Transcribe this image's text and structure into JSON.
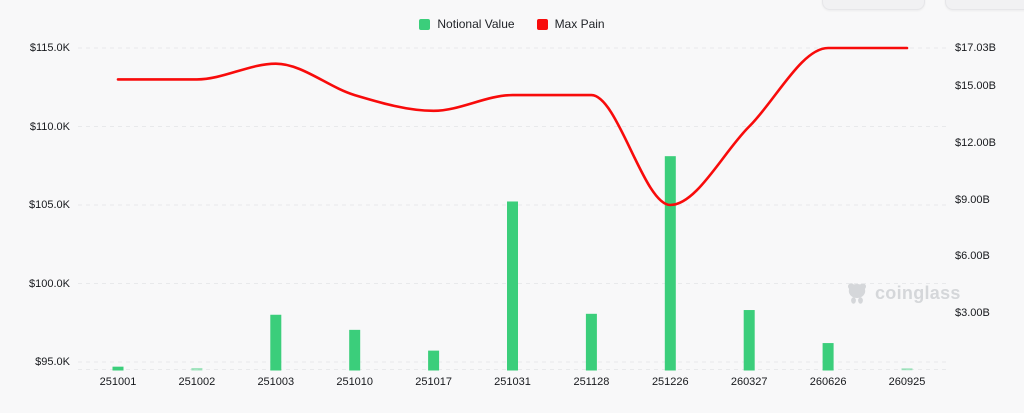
{
  "legend": {
    "items": [
      {
        "label": "Notional Value",
        "color": "#3BCE7B"
      },
      {
        "label": "Max Pain",
        "color": "#F80B0B"
      }
    ]
  },
  "watermark": {
    "text": "coinglass"
  },
  "colors": {
    "background": "#f8f8f9",
    "bar": "#3BCE7B",
    "line": "#F80B0B",
    "grid": "#e8e9eb",
    "axis_text": "#17191d",
    "watermark": "#d5d7da"
  },
  "chart_data": {
    "type": "bar",
    "subtype": "bar+line dual axis",
    "categories": [
      "251001",
      "251002",
      "251003",
      "251010",
      "251017",
      "251031",
      "251128",
      "251226",
      "260327",
      "260626",
      "260925"
    ],
    "series": [
      {
        "name": "Notional Value",
        "type": "bar",
        "axis": "right",
        "unit": "billions USD",
        "values": [
          0.15,
          0.08,
          2.9,
          2.1,
          1.0,
          8.9,
          2.95,
          11.3,
          3.15,
          1.4,
          0.05
        ]
      },
      {
        "name": "Max Pain",
        "type": "line",
        "axis": "left",
        "unit": "USD",
        "values": [
          113000,
          113000,
          114000,
          112000,
          111000,
          112000,
          112000,
          105000,
          110000,
          115000,
          115000
        ]
      }
    ],
    "y_axis_left": {
      "min": 95000,
      "max": 115000,
      "ticks": [
        {
          "label": "$115.0K",
          "value": 115000
        },
        {
          "label": "$110.0K",
          "value": 110000
        },
        {
          "label": "$105.0K",
          "value": 105000
        },
        {
          "label": "$100.0K",
          "value": 100000
        },
        {
          "label": "$95.0K",
          "value": 95000
        }
      ]
    },
    "y_axis_right": {
      "min": 0,
      "max": 17.03,
      "ticks": [
        {
          "label": "$17.03B",
          "value": 17.03
        },
        {
          "label": "$15.00B",
          "value": 15
        },
        {
          "label": "$12.00B",
          "value": 12
        },
        {
          "label": "$9.00B",
          "value": 9
        },
        {
          "label": "$6.00B",
          "value": 6
        },
        {
          "label": "$3.00B",
          "value": 3
        }
      ]
    },
    "grid": "horizontal dashed",
    "legend_position": "top center"
  }
}
